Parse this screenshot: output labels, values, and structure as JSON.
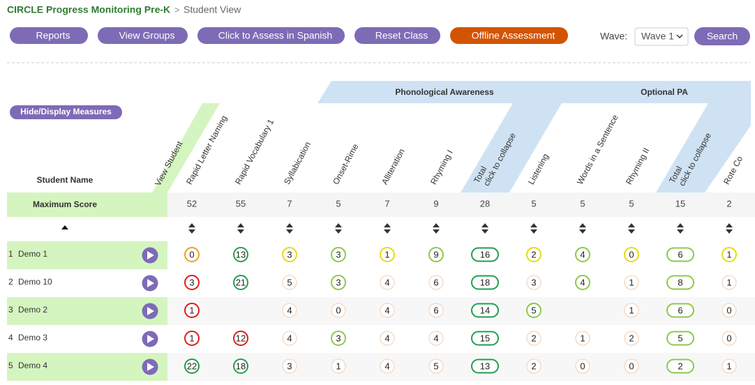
{
  "breadcrumb": {
    "app": "CIRCLE Progress Monitoring Pre-K",
    "separator": ">",
    "page": "Student View"
  },
  "toolbar": {
    "buttons": [
      {
        "label": "Reports",
        "color": "#7e6bb6"
      },
      {
        "label": "View Groups",
        "color": "#7e6bb6"
      },
      {
        "label": "Click to Assess in Spanish",
        "color": "#7e6bb6"
      },
      {
        "label": "Reset Class",
        "color": "#7e6bb6"
      },
      {
        "label": "Offline Assessment",
        "color": "#d35400"
      }
    ],
    "wave_label": "Wave:",
    "wave_value": "Wave 1",
    "search": "Search"
  },
  "hide_display": "Hide/Display Measures",
  "groups": [
    "Phonological Awareness",
    "Optional PA"
  ],
  "student_name_header": "Student Name",
  "view_student": "View Student",
  "measures": [
    {
      "label": "Rapid Letter Naming"
    },
    {
      "label": "Rapid Vocabulary 1"
    },
    {
      "label": "Syllabication"
    },
    {
      "label": "Onset-Rime"
    },
    {
      "label": "Alliteration"
    },
    {
      "label": "Rhyming I"
    },
    {
      "label": "Total",
      "action": "click to collapse"
    },
    {
      "label": "Listening"
    },
    {
      "label": "Words in a Sentence"
    },
    {
      "label": "Rhyming II"
    },
    {
      "label": "Total",
      "action": "click to collapse"
    },
    {
      "label": "Rote Co"
    }
  ],
  "max_score_label": "Maximum Score",
  "max_scores": [
    52,
    55,
    7,
    5,
    7,
    9,
    28,
    5,
    5,
    5,
    15,
    2
  ],
  "level_colors": {
    "o": "#f0a020",
    "g": "#1f9e4f",
    "y": "#e6dc10",
    "lg": "#8cc84b",
    "r": "#e21b1b",
    "n": "#f6dcc6"
  },
  "students": [
    {
      "index": 1,
      "name": "Demo 1",
      "scores": [
        0,
        13,
        3,
        3,
        1,
        9,
        16,
        2,
        4,
        0,
        6,
        1
      ],
      "levels": [
        "o",
        "g",
        "y",
        "lg",
        "y",
        "lg",
        "g",
        "y",
        "lg",
        "y",
        "lg",
        "y"
      ]
    },
    {
      "index": 2,
      "name": "Demo 10",
      "scores": [
        3,
        21,
        5,
        3,
        4,
        6,
        18,
        3,
        4,
        1,
        8,
        1
      ],
      "levels": [
        "r",
        "g",
        "n",
        "lg",
        "n",
        "n",
        "g",
        "n",
        "lg",
        "n",
        "lg",
        "n"
      ]
    },
    {
      "index": 3,
      "name": "Demo 2",
      "scores": [
        1,
        null,
        4,
        0,
        4,
        6,
        14,
        5,
        null,
        1,
        6,
        0
      ],
      "levels": [
        "r",
        null,
        "n",
        "n",
        "n",
        "n",
        "g",
        "lg",
        null,
        "n",
        "lg",
        "n"
      ]
    },
    {
      "index": 4,
      "name": "Demo 3",
      "scores": [
        1,
        12,
        4,
        3,
        4,
        4,
        15,
        2,
        1,
        2,
        5,
        0
      ],
      "levels": [
        "r",
        "r",
        "n",
        "lg",
        "n",
        "n",
        "g",
        "n",
        "n",
        "n",
        "lg",
        "n"
      ]
    },
    {
      "index": 5,
      "name": "Demo 4",
      "scores": [
        22,
        18,
        3,
        1,
        4,
        5,
        13,
        2,
        0,
        0,
        2,
        1
      ],
      "levels": [
        "g",
        "g",
        "n",
        "n",
        "n",
        "n",
        "g",
        "n",
        "n",
        "n",
        "lg",
        "n"
      ]
    }
  ]
}
